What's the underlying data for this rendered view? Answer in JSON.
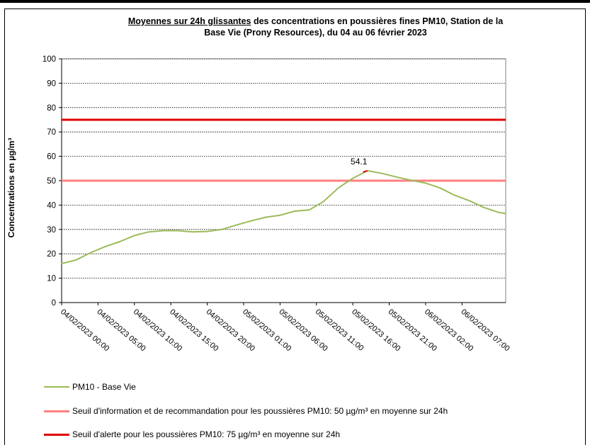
{
  "title_part1_underlined": "Moyennes sur 24h glissantes",
  "title_part1_rest": " des concentrations en poussières fines PM10, Station de la",
  "title_part2": "Base Vie (Prony Resources), du 04 au 06 février 2023",
  "chart_data": {
    "type": "line",
    "ylabel": "Concentrations en µg/m³",
    "xlabel": "",
    "ylim": [
      0,
      100
    ],
    "yticks": [
      0,
      10,
      20,
      30,
      40,
      50,
      60,
      70,
      80,
      90,
      100
    ],
    "x_tick_labels": [
      "04/02/2023 00:00",
      "04/02/2023 05:00",
      "04/02/2023 10:00",
      "04/02/2023 15:00",
      "04/02/2023 20:00",
      "05/02/2023 01:00",
      "05/02/2023 06:00",
      "05/02/2023 11:00",
      "05/02/2023 16:00",
      "05/02/2023 21:00",
      "06/02/2023 02:00",
      "06/02/2023 07:00"
    ],
    "grid": "horizontal dotted",
    "legend_placement": "bottom",
    "series": [
      {
        "name": "PM10 - Base Vie",
        "color": "#9bbb59",
        "hours": [
          0,
          2,
          4,
          6,
          8,
          10,
          12,
          14,
          16,
          18,
          20,
          22,
          24,
          26,
          28,
          30,
          32,
          34,
          36,
          38,
          40,
          41,
          42,
          44,
          46,
          48,
          50,
          52,
          54,
          56,
          58,
          60,
          61
        ],
        "values": [
          16,
          17.5,
          20.5,
          23,
          25,
          27.5,
          29,
          29.5,
          29.5,
          29,
          29.2,
          30,
          31.8,
          33.5,
          35,
          35.8,
          37.5,
          38,
          41.5,
          47,
          51,
          52.5,
          54.1,
          53,
          51.5,
          50.2,
          49,
          47,
          44,
          41.8,
          39,
          37,
          36.5
        ]
      },
      {
        "name": "Seuil d'information et de recommandation pour les poussières PM10: 50 µg/m³ en moyenne sur 24h",
        "color": "#ff8080",
        "constant": 50
      },
      {
        "name": "Seuil d'alerte pour les poussières PM10: 75 µg/m³ en moyenne sur 24h",
        "color": "#e00000",
        "constant": 75
      }
    ],
    "annotations": [
      {
        "text": "54.1",
        "hour": 42,
        "value": 54.1
      }
    ]
  }
}
